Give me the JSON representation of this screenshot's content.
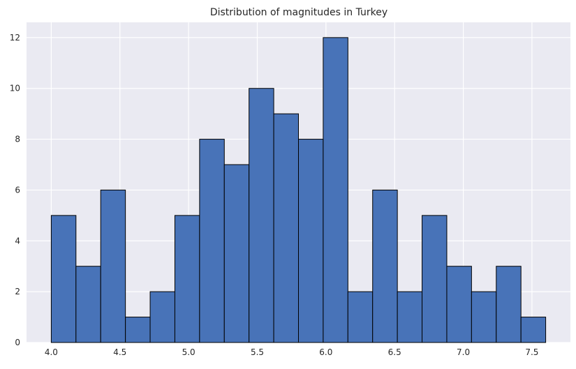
{
  "chart_data": {
    "type": "bar",
    "title": "Distribution of magnitudes in Turkey",
    "xlabel": "",
    "ylabel": "",
    "bin_edges": [
      4.0,
      4.18,
      4.36,
      4.54,
      4.72,
      4.9,
      5.08,
      5.26,
      5.44,
      5.62,
      5.8,
      5.98,
      6.16,
      6.34,
      6.52,
      6.7,
      6.88,
      7.06,
      7.24,
      7.42,
      7.6
    ],
    "values": [
      5,
      3,
      6,
      1,
      2,
      5,
      8,
      7,
      10,
      9,
      8,
      12,
      2,
      6,
      2,
      5,
      3,
      2,
      3,
      1
    ],
    "xlim": [
      3.82,
      7.78
    ],
    "ylim": [
      0,
      12.6
    ],
    "xticks": [
      4.0,
      4.5,
      5.0,
      5.5,
      6.0,
      6.5,
      7.0,
      7.5
    ],
    "xtick_labels": [
      "4.0",
      "4.5",
      "5.0",
      "5.5",
      "6.0",
      "6.5",
      "7.0",
      "7.5"
    ],
    "yticks": [
      0,
      2,
      4,
      6,
      8,
      10,
      12
    ],
    "ytick_labels": [
      "0",
      "2",
      "4",
      "6",
      "8",
      "10",
      "12"
    ],
    "grid": true,
    "colors": {
      "bar": "#4873b8",
      "edge": "#000000",
      "plot_bg": "#eaeaf2",
      "grid": "#ffffff"
    }
  }
}
